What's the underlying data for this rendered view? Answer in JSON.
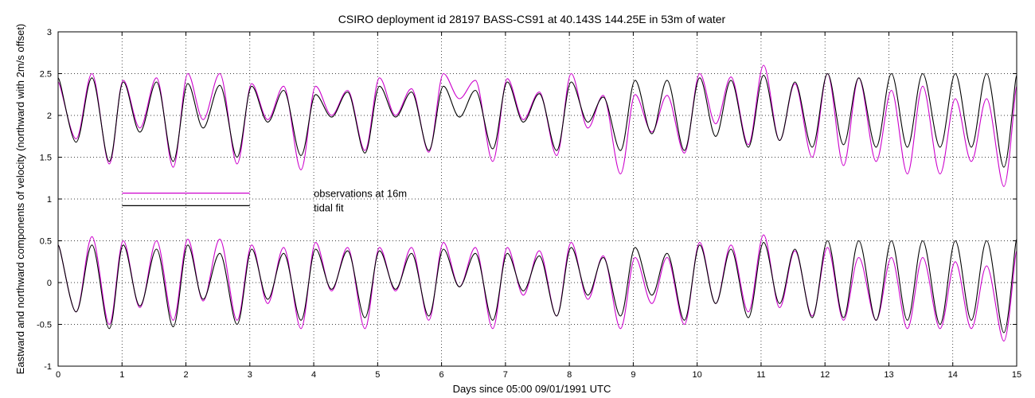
{
  "chart_data": {
    "type": "line",
    "title": "CSIRO deployment id 28197 BASS-CS91 at 40.143S 144.25E in 53m of water",
    "xlabel": "Days since 05:00 09/01/1991 UTC",
    "ylabel": "Eastward  and northward components of velocity  (northward with 2m/s offset)",
    "xlim": [
      0,
      15
    ],
    "ylim": [
      -1,
      3
    ],
    "xticks": [
      "0",
      "1",
      "2",
      "3",
      "4",
      "5",
      "6",
      "7",
      "8",
      "9",
      "10",
      "11",
      "12",
      "13",
      "14",
      "15"
    ],
    "yticks": [
      "-1",
      "-0.5",
      "0",
      "0.5",
      "1",
      "1.5",
      "2",
      "2.5",
      "3"
    ],
    "grid": true,
    "legend": {
      "placement": "center-left",
      "entries": [
        {
          "label": "observations at 16m",
          "color": "#cc00cc"
        },
        {
          "label": "tidal fit",
          "color": "#000000"
        }
      ]
    },
    "colors": {
      "observations": "#cc00cc",
      "fit": "#000000"
    },
    "series": [
      {
        "name": "observations at 16m",
        "component": "northward (+2 m/s offset)",
        "color": "#cc00cc",
        "x": [
          0,
          0.28,
          0.53,
          0.8,
          1.02,
          1.28,
          1.54,
          1.8,
          2.03,
          2.27,
          2.53,
          2.8,
          3.03,
          3.28,
          3.53,
          3.8,
          4.03,
          4.28,
          4.53,
          4.8,
          5.03,
          5.28,
          5.53,
          5.8,
          6.03,
          6.28,
          6.53,
          6.8,
          7.03,
          7.28,
          7.53,
          7.8,
          8.03,
          8.29,
          8.53,
          8.8,
          9.03,
          9.29,
          9.53,
          9.8,
          10.04,
          10.29,
          10.53,
          10.8,
          11.04,
          11.29,
          11.53,
          11.8,
          12.04,
          12.29,
          12.53,
          12.8,
          13.04,
          13.29,
          13.53,
          13.8,
          14.04,
          14.29,
          14.53,
          14.8,
          15.0
        ],
        "values": [
          2.4,
          1.72,
          2.5,
          1.42,
          2.42,
          1.85,
          2.45,
          1.38,
          2.5,
          1.95,
          2.5,
          1.42,
          2.38,
          1.95,
          2.35,
          1.35,
          2.35,
          2.0,
          2.3,
          1.58,
          2.45,
          2.0,
          2.32,
          1.56,
          2.5,
          2.2,
          2.42,
          1.45,
          2.44,
          1.95,
          2.28,
          1.52,
          2.5,
          1.85,
          2.24,
          1.3,
          2.25,
          1.8,
          2.24,
          1.55,
          2.5,
          1.9,
          2.46,
          1.65,
          2.6,
          1.7,
          2.38,
          1.5,
          2.5,
          1.4,
          2.45,
          1.45,
          2.3,
          1.3,
          2.35,
          1.3,
          2.2,
          1.45,
          2.2,
          1.15,
          2.35
        ]
      },
      {
        "name": "tidal fit",
        "component": "northward (+2 m/s offset)",
        "color": "#000000",
        "x": [
          0,
          0.28,
          0.53,
          0.8,
          1.02,
          1.28,
          1.54,
          1.8,
          2.03,
          2.27,
          2.53,
          2.8,
          3.03,
          3.28,
          3.53,
          3.8,
          4.03,
          4.28,
          4.53,
          4.8,
          5.03,
          5.28,
          5.53,
          5.8,
          6.03,
          6.28,
          6.53,
          6.8,
          7.03,
          7.28,
          7.53,
          7.8,
          8.03,
          8.29,
          8.53,
          8.8,
          9.03,
          9.29,
          9.53,
          9.8,
          10.04,
          10.29,
          10.53,
          10.8,
          11.04,
          11.29,
          11.53,
          11.8,
          12.04,
          12.29,
          12.53,
          12.8,
          13.04,
          13.29,
          13.53,
          13.8,
          14.04,
          14.29,
          14.53,
          14.8,
          15.0
        ],
        "values": [
          2.45,
          1.68,
          2.45,
          1.45,
          2.4,
          1.8,
          2.4,
          1.45,
          2.38,
          1.85,
          2.36,
          1.5,
          2.35,
          1.92,
          2.3,
          1.52,
          2.25,
          1.98,
          2.28,
          1.55,
          2.35,
          1.98,
          2.28,
          1.58,
          2.35,
          1.98,
          2.3,
          1.6,
          2.4,
          1.92,
          2.26,
          1.58,
          2.4,
          1.92,
          2.22,
          1.58,
          2.42,
          1.78,
          2.42,
          1.58,
          2.45,
          1.75,
          2.42,
          1.62,
          2.48,
          1.7,
          2.4,
          1.62,
          2.5,
          1.65,
          2.45,
          1.62,
          2.5,
          1.62,
          2.5,
          1.62,
          2.5,
          1.62,
          2.5,
          1.38,
          2.48
        ]
      },
      {
        "name": "observations at 16m",
        "component": "eastward",
        "color": "#cc00cc",
        "x": [
          0,
          0.28,
          0.53,
          0.8,
          1.02,
          1.28,
          1.54,
          1.8,
          2.03,
          2.27,
          2.53,
          2.8,
          3.03,
          3.28,
          3.53,
          3.8,
          4.03,
          4.28,
          4.53,
          4.8,
          5.03,
          5.28,
          5.53,
          5.8,
          6.03,
          6.28,
          6.53,
          6.8,
          7.03,
          7.28,
          7.53,
          7.8,
          8.03,
          8.29,
          8.53,
          8.8,
          9.03,
          9.29,
          9.53,
          9.8,
          10.04,
          10.29,
          10.53,
          10.8,
          11.04,
          11.29,
          11.53,
          11.8,
          12.04,
          12.29,
          12.53,
          12.8,
          13.04,
          13.29,
          13.53,
          13.8,
          14.04,
          14.29,
          14.53,
          14.8,
          15.0
        ],
        "values": [
          0.45,
          -0.35,
          0.55,
          -0.5,
          0.5,
          -0.3,
          0.5,
          -0.45,
          0.52,
          -0.22,
          0.52,
          -0.45,
          0.45,
          -0.25,
          0.42,
          -0.55,
          0.48,
          -0.1,
          0.42,
          -0.55,
          0.42,
          -0.1,
          0.42,
          -0.45,
          0.48,
          -0.05,
          0.42,
          -0.55,
          0.42,
          -0.15,
          0.38,
          -0.4,
          0.48,
          -0.2,
          0.32,
          -0.55,
          0.3,
          -0.25,
          0.3,
          -0.5,
          0.48,
          -0.25,
          0.45,
          -0.35,
          0.57,
          -0.3,
          0.38,
          -0.4,
          0.42,
          -0.45,
          0.3,
          -0.45,
          0.3,
          -0.55,
          0.3,
          -0.55,
          0.25,
          -0.55,
          0.2,
          -0.7,
          0.38
        ]
      },
      {
        "name": "tidal fit",
        "component": "eastward",
        "color": "#000000",
        "x": [
          0,
          0.28,
          0.53,
          0.8,
          1.02,
          1.28,
          1.54,
          1.8,
          2.03,
          2.27,
          2.53,
          2.8,
          3.03,
          3.28,
          3.53,
          3.8,
          4.03,
          4.28,
          4.53,
          4.8,
          5.03,
          5.28,
          5.53,
          5.8,
          6.03,
          6.28,
          6.53,
          6.8,
          7.03,
          7.28,
          7.53,
          7.8,
          8.03,
          8.29,
          8.53,
          8.8,
          9.03,
          9.29,
          9.53,
          9.8,
          10.04,
          10.29,
          10.53,
          10.8,
          11.04,
          11.29,
          11.53,
          11.8,
          12.04,
          12.29,
          12.53,
          12.8,
          13.04,
          13.29,
          13.53,
          13.8,
          14.04,
          14.29,
          14.53,
          14.8,
          15.0
        ],
        "values": [
          0.45,
          -0.35,
          0.45,
          -0.55,
          0.45,
          -0.28,
          0.4,
          -0.53,
          0.45,
          -0.2,
          0.35,
          -0.5,
          0.4,
          -0.2,
          0.35,
          -0.45,
          0.4,
          -0.08,
          0.38,
          -0.42,
          0.38,
          -0.08,
          0.35,
          -0.4,
          0.4,
          -0.05,
          0.35,
          -0.45,
          0.35,
          -0.1,
          0.32,
          -0.4,
          0.42,
          -0.15,
          0.3,
          -0.4,
          0.42,
          -0.15,
          0.35,
          -0.45,
          0.45,
          -0.25,
          0.4,
          -0.42,
          0.48,
          -0.25,
          0.4,
          -0.42,
          0.5,
          -0.42,
          0.5,
          -0.45,
          0.5,
          -0.45,
          0.5,
          -0.5,
          0.5,
          -0.45,
          0.5,
          -0.6,
          0.52
        ]
      }
    ]
  }
}
